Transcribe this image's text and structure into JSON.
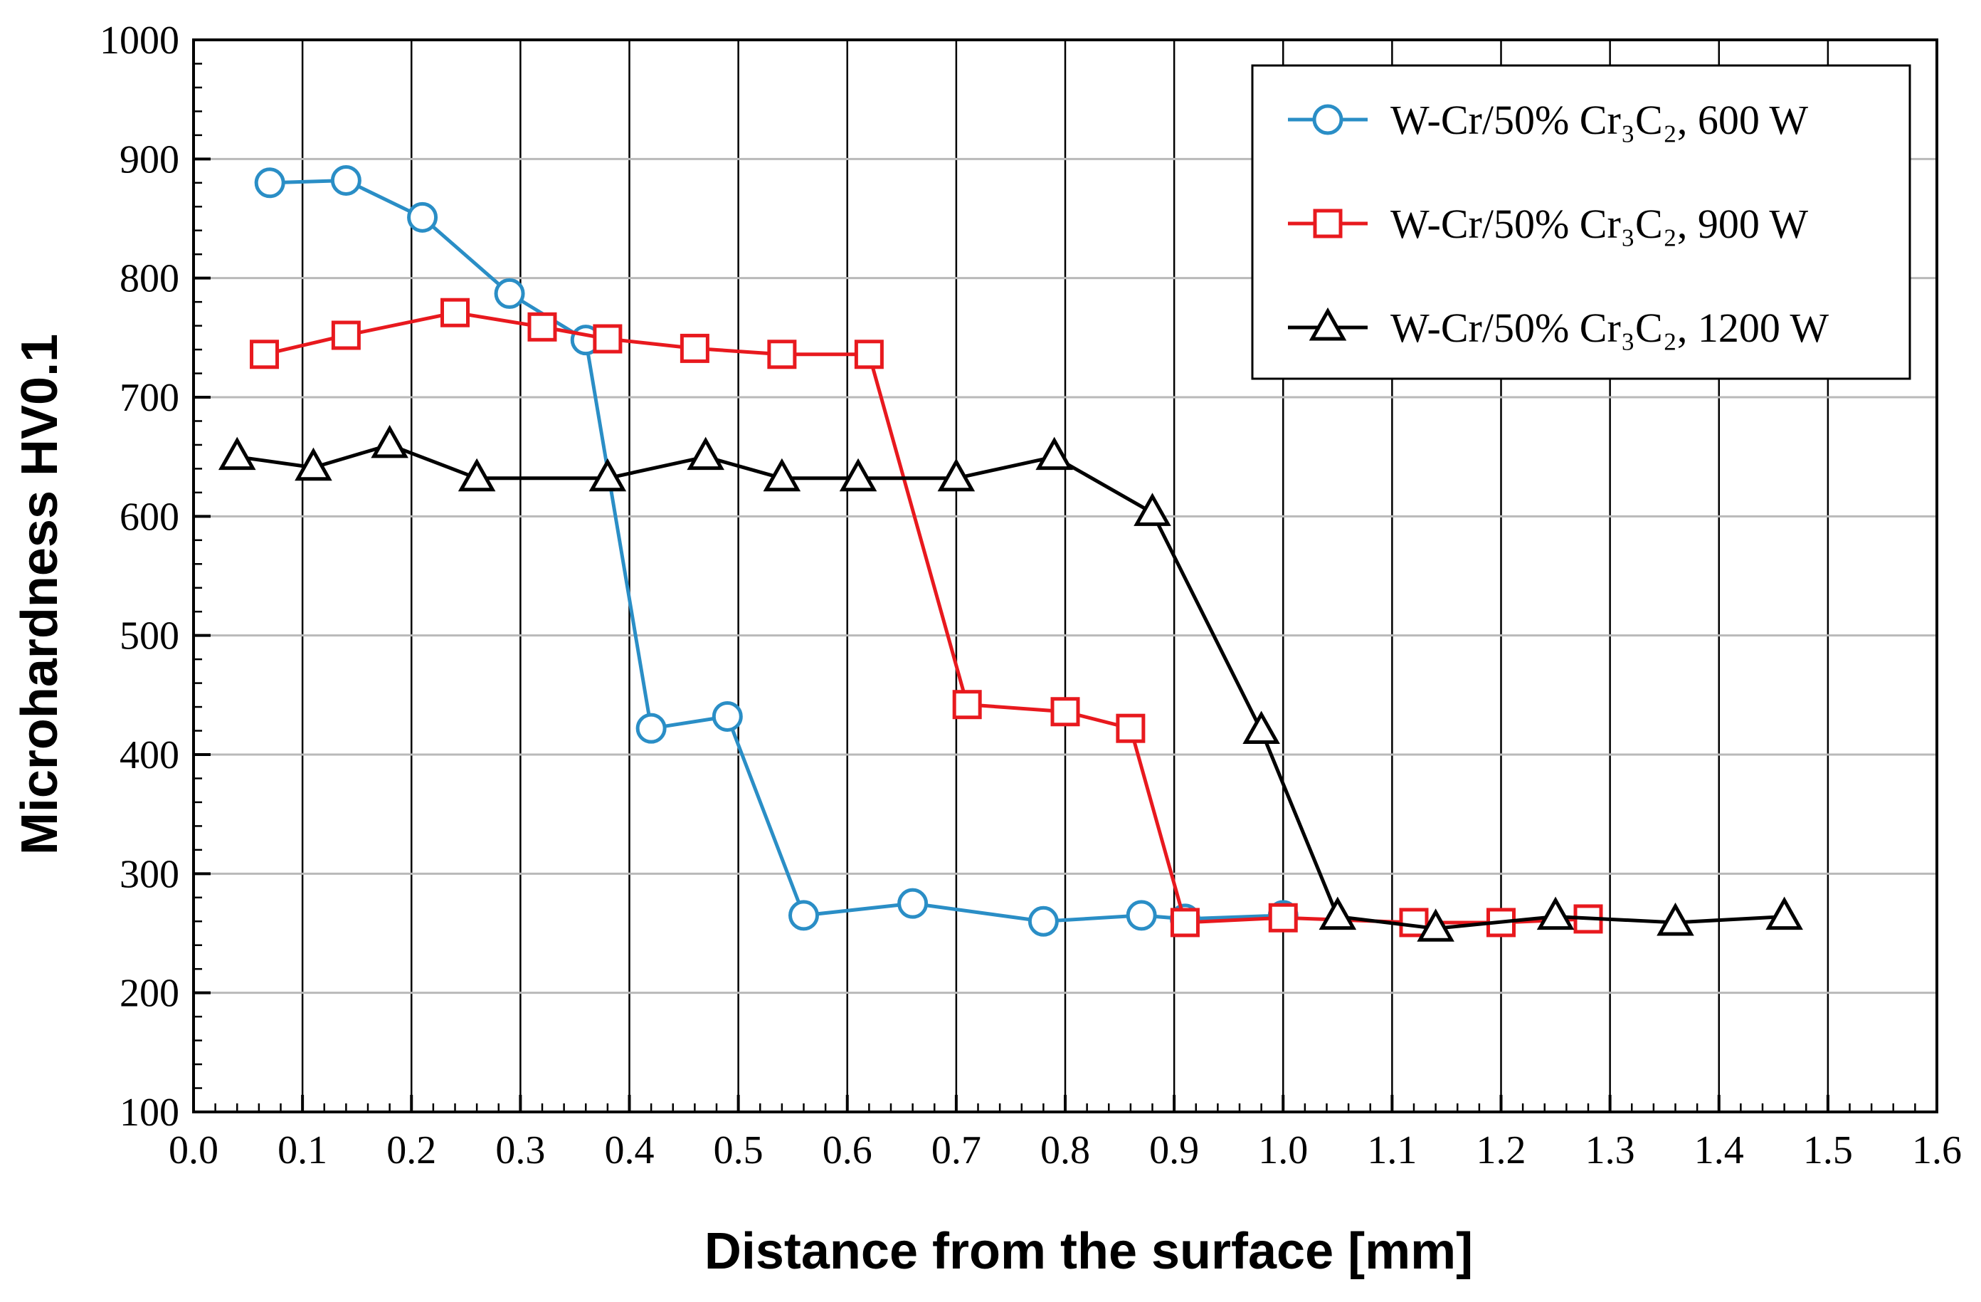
{
  "chart_data": {
    "type": "line",
    "title": "",
    "xlabel": "Distance from the surface [mm]",
    "ylabel": "Microhardness HV0.1",
    "xlim": [
      0.0,
      1.6
    ],
    "ylim": [
      100,
      1000
    ],
    "x_ticks": [
      "0.0",
      "0.1",
      "0.2",
      "0.3",
      "0.4",
      "0.5",
      "0.6",
      "0.7",
      "0.8",
      "0.9",
      "1.0",
      "1.1",
      "1.2",
      "1.3",
      "1.4",
      "1.5",
      "1.6"
    ],
    "y_ticks": [
      "100",
      "200",
      "300",
      "400",
      "500",
      "600",
      "700",
      "800",
      "900",
      "1000"
    ],
    "grid": true,
    "legend_position": "top-right",
    "series": [
      {
        "name": "W-Cr/50% Cr₃C₂, 600 W",
        "color": "#2a8ec6",
        "marker": "circle",
        "x": [
          0.07,
          0.14,
          0.21,
          0.29,
          0.36,
          0.42,
          0.49,
          0.56,
          0.66,
          0.78,
          0.87,
          0.91,
          1.0
        ],
        "y": [
          880,
          882,
          851,
          787,
          748,
          422,
          432,
          265,
          275,
          260,
          265,
          262,
          265
        ]
      },
      {
        "name": "W-Cr/50% Cr₃C₂, 900 W",
        "color": "#e8191e",
        "marker": "square",
        "x": [
          0.065,
          0.14,
          0.24,
          0.32,
          0.38,
          0.46,
          0.54,
          0.62,
          0.71,
          0.8,
          0.86,
          0.91,
          1.0,
          1.12,
          1.2,
          1.28
        ],
        "y": [
          736,
          752,
          771,
          759,
          749,
          741,
          736,
          736,
          442,
          436,
          422,
          259,
          263,
          259,
          259,
          262
        ]
      },
      {
        "name": "W-Cr/50% Cr₃C₂, 1200 W",
        "color": "#000000",
        "marker": "triangle",
        "x": [
          0.04,
          0.11,
          0.18,
          0.26,
          0.38,
          0.47,
          0.54,
          0.61,
          0.7,
          0.79,
          0.88,
          0.98,
          1.05,
          1.14,
          1.25,
          1.36,
          1.46
        ],
        "y": [
          650,
          641,
          660,
          632,
          632,
          650,
          632,
          632,
          632,
          650,
          603,
          420,
          264,
          254,
          264,
          259,
          264
        ]
      }
    ]
  }
}
